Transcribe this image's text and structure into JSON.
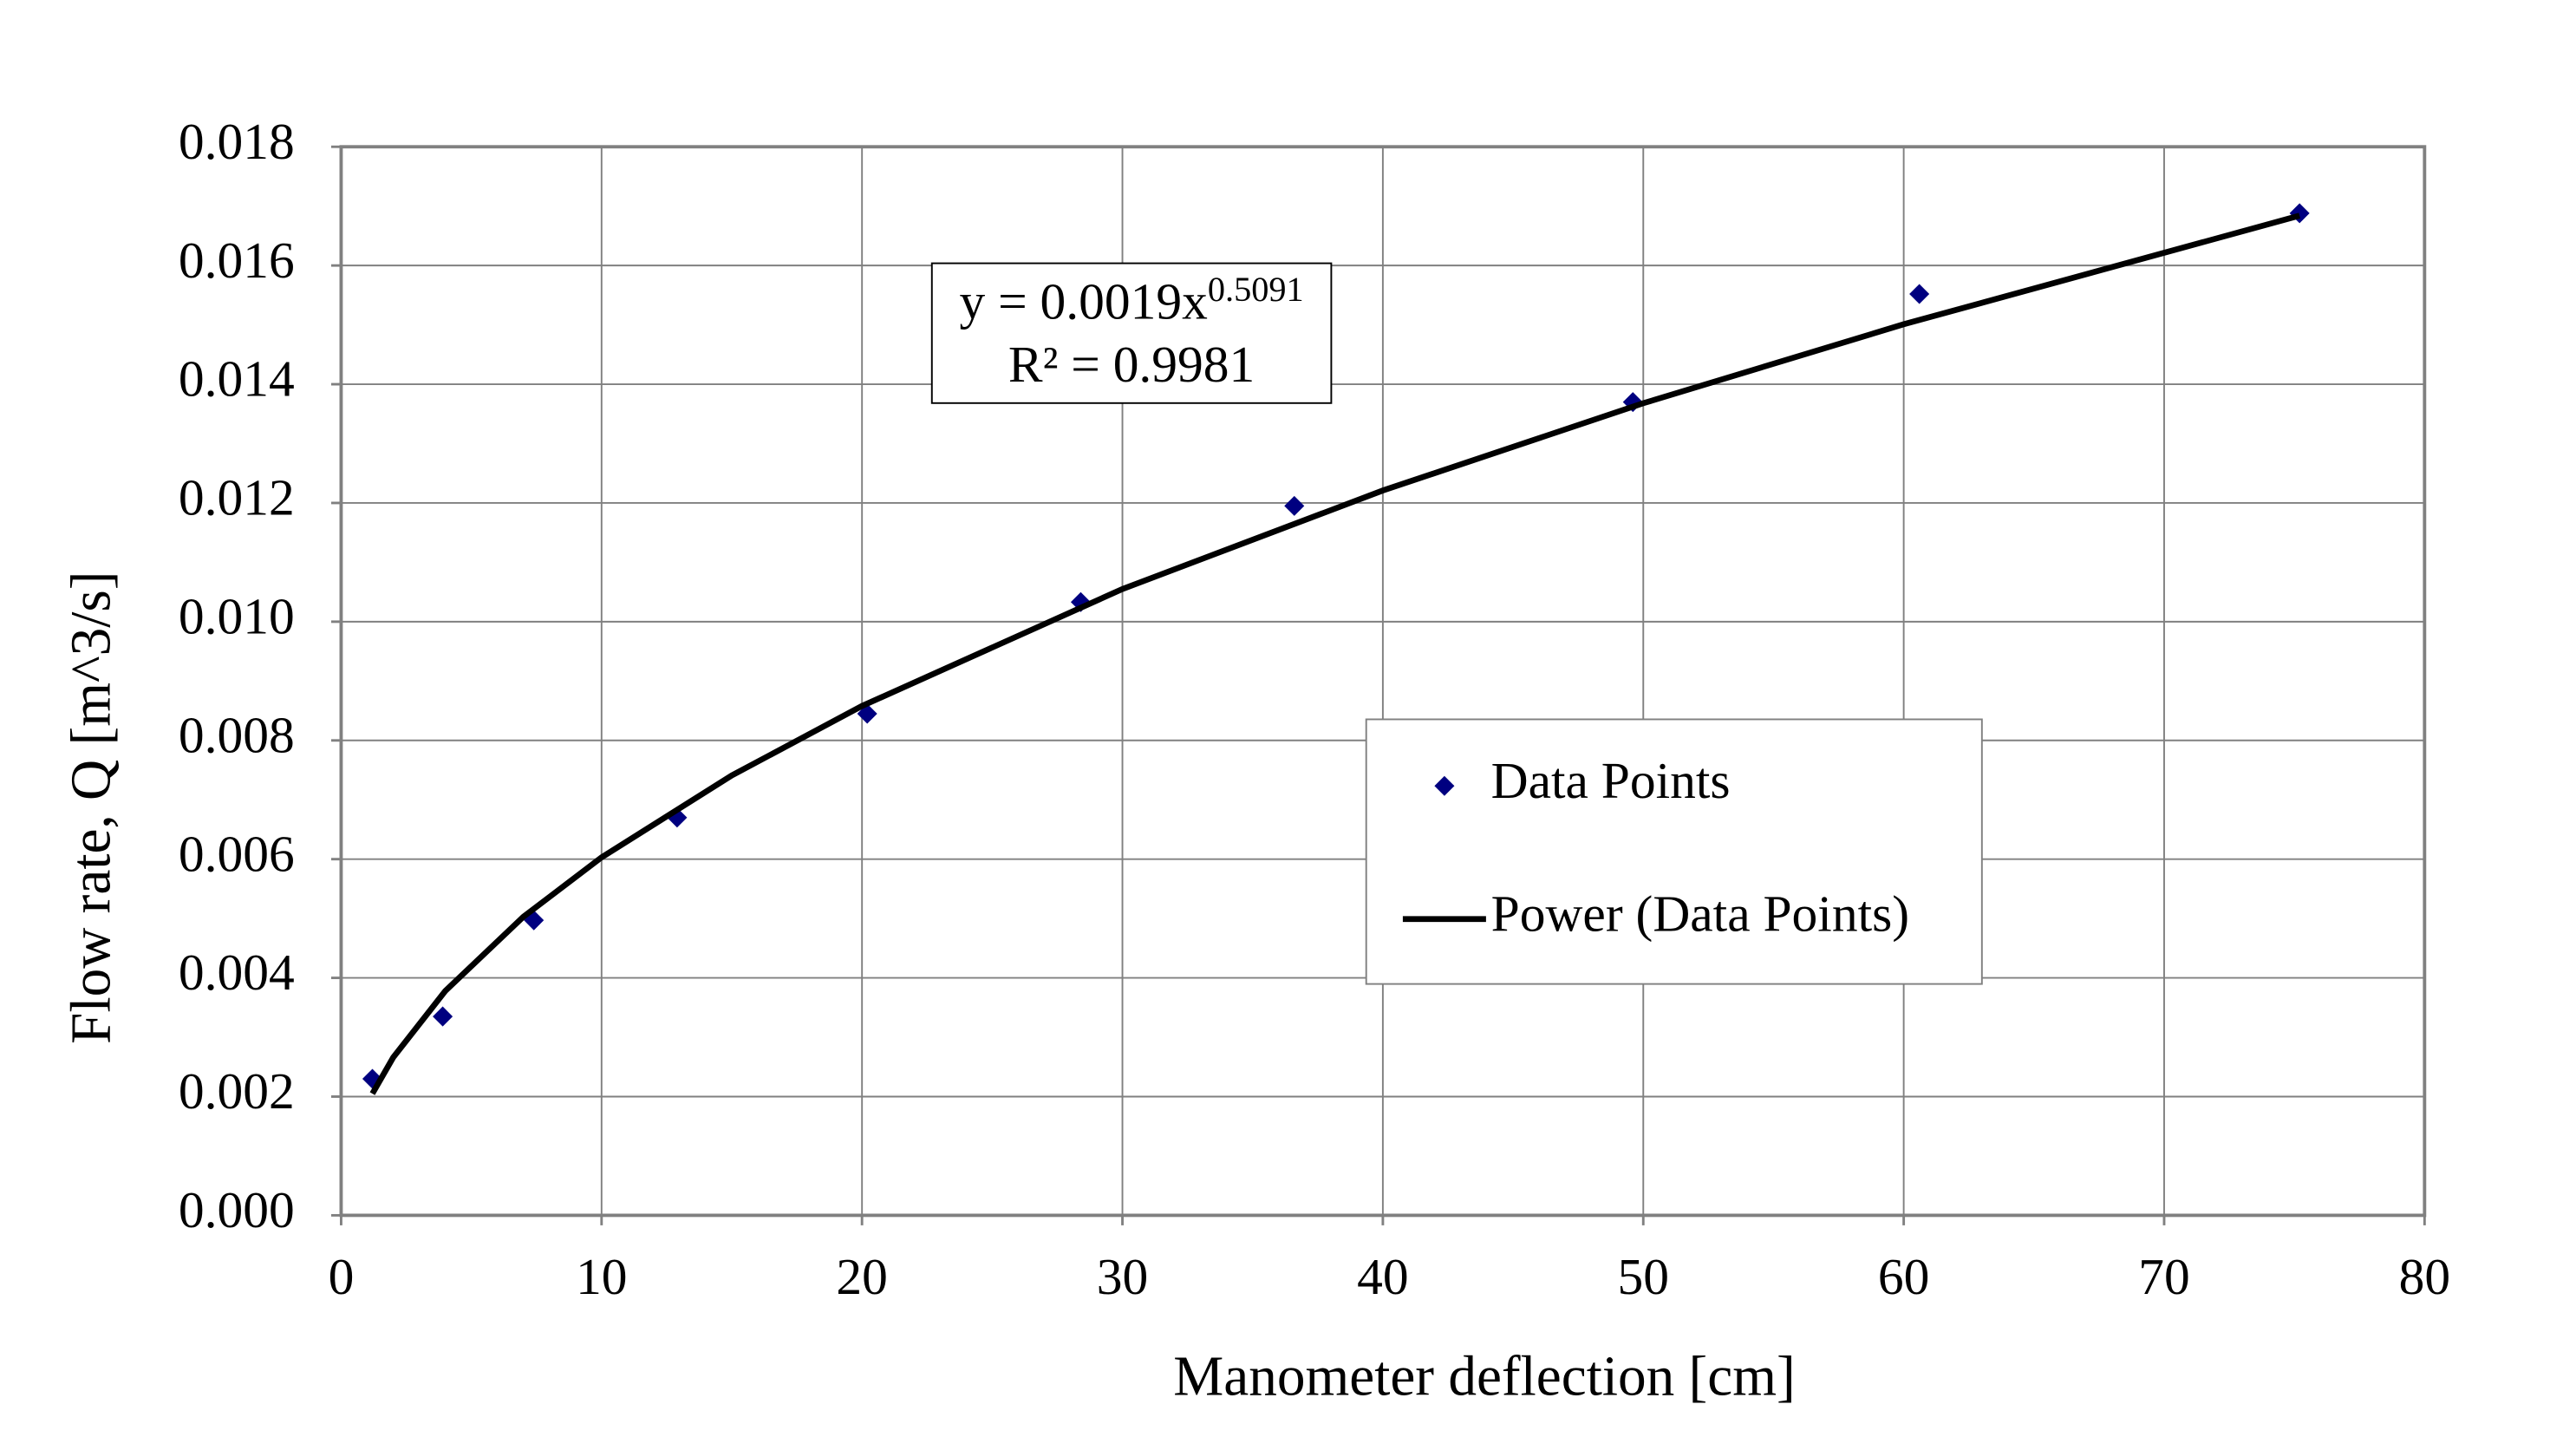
{
  "chart_data": {
    "type": "scatter",
    "xlabel": "Manometer deflection [cm]",
    "ylabel": "Flow rate,  Q [m^3/s]",
    "xlim": [
      0,
      80
    ],
    "xticks": [
      0,
      10,
      20,
      30,
      40,
      50,
      60,
      70,
      80
    ],
    "ylim": [
      0,
      0.018
    ],
    "yticks": [
      {
        "value": 0,
        "label": "0.000"
      },
      {
        "value": 0.002,
        "label": "0.002"
      },
      {
        "value": 0.004,
        "label": "0.004"
      },
      {
        "value": 0.006,
        "label": "0.006"
      },
      {
        "value": 0.008,
        "label": "0.008"
      },
      {
        "value": 0.01,
        "label": "0.010"
      },
      {
        "value": 0.012,
        "label": "0.012"
      },
      {
        "value": 0.014,
        "label": "0.014"
      },
      {
        "value": 0.016,
        "label": "0.016"
      },
      {
        "value": 0.018,
        "label": "0.018"
      }
    ],
    "grid": true,
    "legend_position": "right",
    "series": [
      {
        "name": "Data Points",
        "color": "#000080",
        "marker": "diamond",
        "x": [
          1.2,
          3.9,
          7.4,
          12.9,
          20.2,
          28.4,
          36.6,
          49.6,
          60.6,
          75.2
        ],
        "values": [
          0.0023,
          0.00335,
          0.00497,
          0.0067,
          0.00845,
          0.01033,
          0.01195,
          0.0137,
          0.01552,
          0.01688
        ]
      },
      {
        "name": "Power (Data Points)",
        "color": "#000000",
        "marker": "line",
        "x": [
          1.2,
          2,
          4,
          7,
          10,
          15,
          20,
          30,
          40,
          50,
          60,
          75.2
        ],
        "values": [
          0.00205,
          0.00266,
          0.00378,
          0.00503,
          0.00603,
          0.00741,
          0.00858,
          0.01055,
          0.01221,
          0.01368,
          0.01501,
          0.01684
        ]
      }
    ],
    "annotation": {
      "equation": "y = 0.0019x",
      "exponent": "0.5091",
      "r_squared": "R² = 0.9981"
    }
  }
}
